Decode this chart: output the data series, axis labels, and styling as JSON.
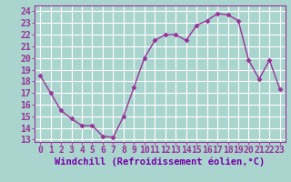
{
  "x": [
    0,
    1,
    2,
    3,
    4,
    5,
    6,
    7,
    8,
    9,
    10,
    11,
    12,
    13,
    14,
    15,
    16,
    17,
    18,
    19,
    20,
    21,
    22,
    23
  ],
  "y": [
    18.5,
    17.0,
    15.5,
    14.8,
    14.2,
    14.2,
    13.3,
    13.2,
    15.0,
    17.5,
    20.0,
    21.5,
    22.0,
    22.0,
    21.5,
    22.8,
    23.2,
    23.8,
    23.7,
    23.2,
    19.8,
    18.2,
    19.8,
    17.3
  ],
  "line_color": "#993399",
  "marker": "D",
  "marker_size": 2.5,
  "bg_color": "#aad4ce",
  "grid_color": "#ffffff",
  "xlabel": "Windchill (Refroidissement éolien,°C)",
  "xlabel_fontsize": 7.5,
  "xtick_labels": [
    "0",
    "1",
    "2",
    "3",
    "4",
    "5",
    "6",
    "7",
    "8",
    "9",
    "10",
    "11",
    "12",
    "13",
    "14",
    "15",
    "16",
    "17",
    "18",
    "19",
    "20",
    "21",
    "22",
    "23"
  ],
  "ytick_labels": [
    "13",
    "14",
    "15",
    "16",
    "17",
    "18",
    "19",
    "20",
    "21",
    "22",
    "23",
    "24"
  ],
  "ylim": [
    12.8,
    24.5
  ],
  "xlim": [
    -0.5,
    23.5
  ],
  "tick_fontsize": 7.0,
  "linewidth": 1.0
}
